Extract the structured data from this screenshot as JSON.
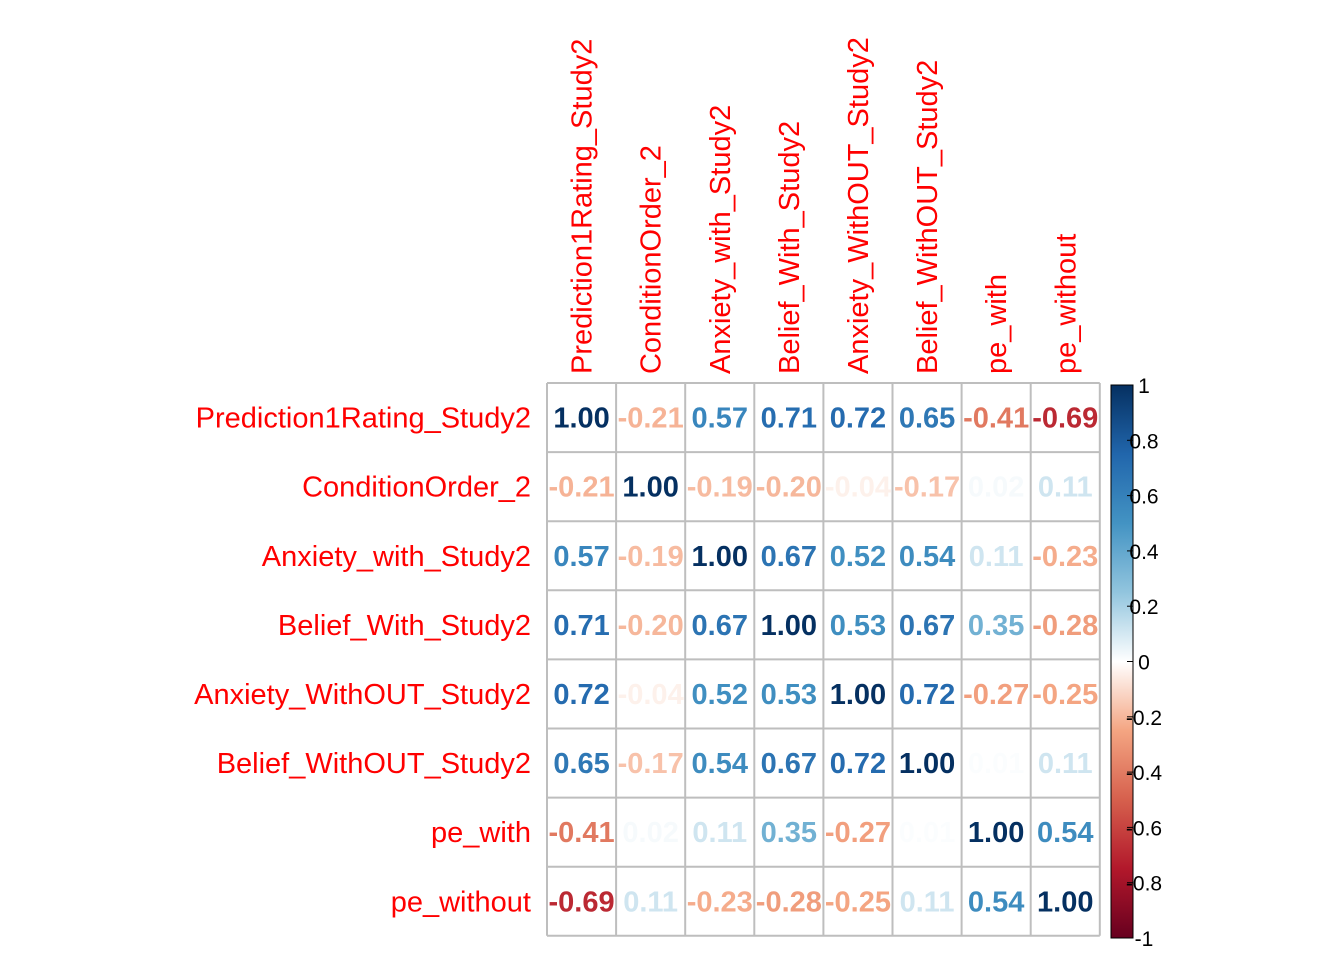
{
  "chart_data": {
    "type": "heatmap",
    "title": "",
    "variables": [
      "Prediction1Rating_Study2",
      "ConditionOrder_2",
      "Anxiety_with_Study2",
      "Belief_With_Study2",
      "Anxiety_WithOUT_Study2",
      "Belief_WithOUT_Study2",
      "pe_with",
      "pe_without"
    ],
    "matrix": [
      [
        1.0,
        -0.21,
        0.57,
        0.71,
        0.72,
        0.65,
        -0.41,
        -0.69
      ],
      [
        -0.21,
        1.0,
        -0.19,
        -0.2,
        -0.04,
        -0.17,
        0.02,
        0.11
      ],
      [
        0.57,
        -0.19,
        1.0,
        0.67,
        0.52,
        0.54,
        0.11,
        -0.23
      ],
      [
        0.71,
        -0.2,
        0.67,
        1.0,
        0.53,
        0.67,
        0.35,
        -0.28
      ],
      [
        0.72,
        -0.04,
        0.52,
        0.53,
        1.0,
        0.72,
        -0.27,
        -0.25
      ],
      [
        0.65,
        -0.17,
        0.54,
        0.67,
        0.72,
        1.0,
        0.01,
        0.11
      ],
      [
        -0.41,
        0.02,
        0.11,
        0.35,
        -0.27,
        0.01,
        1.0,
        0.54
      ],
      [
        -0.69,
        0.11,
        -0.23,
        -0.28,
        -0.25,
        0.11,
        0.54,
        1.0
      ]
    ],
    "value_labels": [
      [
        "1.00",
        "-0.21",
        "0.57",
        "0.71",
        "0.72",
        "0.65",
        "-0.41",
        "-0.69"
      ],
      [
        "-0.21",
        "1.00",
        "-0.19",
        "-0.20",
        "-0.04",
        "-0.17",
        "0.02",
        "0.11"
      ],
      [
        "0.57",
        "-0.19",
        "1.00",
        "0.67",
        "0.52",
        "0.54",
        "0.11",
        "-0.23"
      ],
      [
        "0.71",
        "-0.20",
        "0.67",
        "1.00",
        "0.53",
        "0.67",
        "0.35",
        "-0.28"
      ],
      [
        "0.72",
        "-0.04",
        "0.52",
        "0.53",
        "1.00",
        "0.72",
        "-0.27",
        "-0.25"
      ],
      [
        "0.65",
        "-0.17",
        "0.54",
        "0.67",
        "0.72",
        "1.00",
        "0.01",
        "0.11"
      ],
      [
        "-0.41",
        "0.02",
        "0.11",
        "0.35",
        "-0.27",
        "0.01",
        "1.00",
        "0.54"
      ],
      [
        "-0.69",
        "0.11",
        "-0.23",
        "-0.28",
        "-0.25",
        "0.11",
        "0.54",
        "1.00"
      ]
    ],
    "label_color": "#ff0000",
    "grid_color": "#bebebe",
    "colorbar": {
      "range": [
        -1,
        1
      ],
      "ticks": [
        1,
        0.8,
        0.6,
        0.4,
        0.2,
        0,
        -0.2,
        -0.4,
        -0.6,
        -0.8,
        -1
      ],
      "tick_labels": [
        "1",
        "0.8",
        "0.6",
        "0.4",
        "0.2",
        "0",
        "-0.2",
        "-0.4",
        "-0.6",
        "-0.8",
        "-1"
      ],
      "placement": "right",
      "color_stops": [
        {
          "value": -1.0,
          "color": "#67001f"
        },
        {
          "value": -0.75,
          "color": "#b2182b"
        },
        {
          "value": -0.5,
          "color": "#d6604d"
        },
        {
          "value": -0.25,
          "color": "#f4a582"
        },
        {
          "value": 0.0,
          "color": "#ffffff"
        },
        {
          "value": 0.25,
          "color": "#92c5de"
        },
        {
          "value": 0.5,
          "color": "#4393c3"
        },
        {
          "value": 0.75,
          "color": "#2166ac"
        },
        {
          "value": 1.0,
          "color": "#053061"
        }
      ]
    }
  }
}
